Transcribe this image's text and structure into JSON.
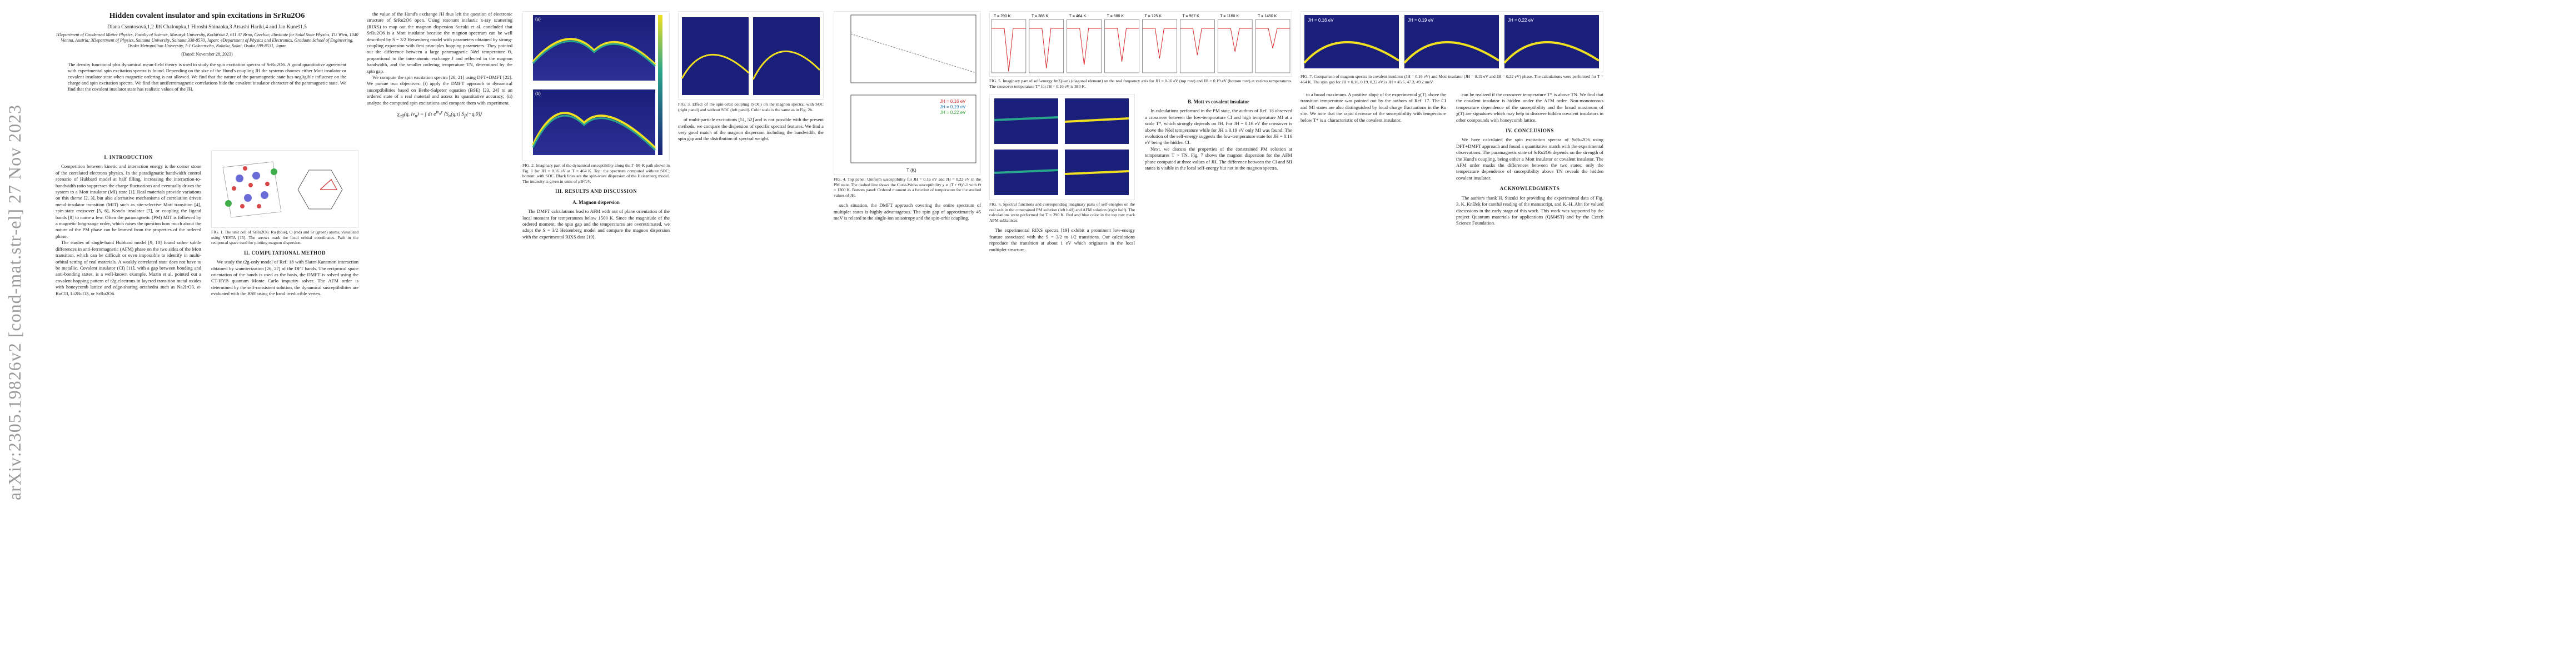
{
  "sidebar": {
    "arxiv_id": "arXiv:2305.19826v2 [cond-mat.str-el] 27 Nov 2023"
  },
  "paper": {
    "title": "Hidden covalent insulator and spin excitations in SrRu2O6",
    "authors": "Diana Csontosová,1,2 Jiří Chaloupka,1 Hiroshi Shinaoka,3 Atsushi Hariki,4 and Jan Kuneš1,5",
    "affiliations": "1Department of Condensed Matter Physics, Faculty of Science, Masaryk University, Kotlářská 2, 611 37 Brno, Czechia; 2Institute for Solid State Physics, TU Wien, 1040 Vienna, Austria; 3Department of Physics, Saitama University, Saitama 338-8570, Japan; 4Department of Physics and Electronics, Graduate School of Engineering, Osaka Metropolitan University, 1-1 Gakuen-cho, Nakaku, Sakai, Osaka 599-8531, Japan",
    "dated": "(Dated: November 28, 2023)",
    "abstract": "The density functional plus dynamical mean-field theory is used to study the spin excitation spectra of SrRu2O6. A good quantitative agreement with experimental spin excitation spectra is found. Depending on the size of the Hund's coupling JH the systems chooses either Mott insulator or covalent insulator state when magnetic ordering is not allowed. We find that the nature of the paramagnetic state has negligible influence on the charge and spin excitation spectra. We find that antiferromagnetic correlations hide the covalent insulator character of the paramagnetic state. We find that the covalent insulator state has realistic values of the JH.",
    "sec1": "I. INTRODUCTION",
    "sec2": "II. COMPUTATIONAL METHOD",
    "sec3": "III. RESULTS AND DISCUSSION",
    "sub_a": "A. Magnon dispersion",
    "sub_b": "B. Mott vs covalent insulator",
    "sec4": "IV. CONCLUSIONS",
    "ack": "ACKNOWLEDGMENTS"
  },
  "columns": {
    "c1_intro": "Competition between kinetic and interaction energy is the corner stone of the correlated electrons physics. In the paradigmatic bandwidth control scenario of Hubbard model at half filling, increasing the interaction-to-bandwidth ratio suppresses the charge fluctuations and eventually drives the system to a Mott insulator (MI) state [1]. Real materials provide variations on this theme [2, 3], but also alternative mechanisms of correlation driven metal-insulator transition (MIT) such as site-selective Mott transition [4], spin-state crossover [5, 6], Kondo insulator [7], or coupling the ligand bands [8] to name a few. Often the paramagnetic (PM) MIT is followed by a magnetic long-range order, which raises the question how much about the nature of the PM phase can be learned from the properties of the ordered phase.",
    "c1_intro2": "The studies of single-band Hubbard model [9, 10] found rather subtle differences in anti-ferromagnetic (AFM) phase on the two sides of the Mott transition, which can be difficult or even impossible to identify in multi-orbital setting of real materials. A weakly correlated state does not have to be metallic. Covalent insulator (CI) [11], with a gap between bonding and anti-bonding states, is a well-known example. Mazin et al. pointed out a covalent hopping pattern of t2g electrons in layered transition metal oxides with honeycomb lattice and edge-sharing octahedra such as Na2IrO3, α-RuCl3, Li2RuO3, or SrRu2O6.",
    "c2_a": "the value of the Hund's exchange JH thus left the question of electronic structure of SrRu2O6 open. Using resonant inelastic x-ray scattering (RIXS) to map out the magnon dispersion Suzuki et al. concluded that SrRu2O6 is a Mott insulator because the magnon spectrum can be well described by S = 3/2 Heisenberg model with parameters obtained by strong-coupling expansion with first principles hopping parameters. They pointed out the difference between a large paramagnetic Néel temperature Θ, proportional to the inter-atomic exchange J and reflected in the magnon bandwidth, and the smaller ordering temperature TN, determined by the spin gap.",
    "c2_b": "We compute the spin excitation spectra [20, 21] using DFT+DMFT [22]. We pursue two objectives: (i) apply the DMFT approach to dynamical susceptibilities based on Bethe-Salpeter equation (BSE) [23, 24] to an ordered state of a real material and assess its quantitative accuracy; (ii) analyze the computed spin excitations and compare them with experiment.",
    "c2_method": "We study the t2g-only model of Ref. 18 with Slater-Kanamori interaction obtained by wannierization [26, 27] of the DFT bands. The reciprocal space orientation of the bands is used as the basis, the DMFT is solved using the CT-HYB quantum Monte Carlo impurity solver. The AFM order is determined by the self-consistent solution, the dynamical susceptibilities are evaluated with the BSE using the local irreducible vertex.",
    "c3_a": "The DMFT calculations lead to AFM with out of plane orientation of the local moment for temperatures below 1500 K. Since the magnitude of the ordered moment, the spin gap and the temperatures are overestimated, we adopt the S = 3/2 Heisenberg model and compare the magnon dispersion with the experimental RIXS data [19].",
    "c3_b": "of multi-particle excitations [51, 52] and is not possible with the present methods, we compare the dispersion of specific spectral features. We find a very good match of the magnon dispersion including the bandwidth, the spin gap and the distribution of spectral weight.",
    "c4_a": "such situation, the DMFT approach covering the entire spectrum of multiplet states is highly advantageous. The spin gap of approximately 45 meV is related to the single-ion anisotropy and the spin-orbit coupling.",
    "c4_b": "In calculations performed in the PM state, the authors of Ref. 18 observed a crossover between the low-temperature CI and high temperature MI at a scale T*, which strongly depends on JH. For JH = 0.16 eV the crossover is above the Néel temperature while for JH ≥ 0.19 eV only MI was found. The evolution of the self-energy suggests the low-temperature state for JH = 0.16 eV being the hidden CI.",
    "c5_a": "The experimental RIXS spectra [19] exhibit a prominent low-energy feature associated with the S = 3/2 to 1/2 transitions. Our calculations reproduce the transition at about 1 eV which originates in the local multiplet structure.",
    "c5_b": "Next, we discuss the properties of the constrained PM solution at temperatures T > TN. Fig. 7 shows the magnon dispersion for the AFM phase computed at three values of JH. The difference between the CI and MI states is visible in the local self-energy but not in the magnon spectra.",
    "c6_a": "to a broad maximum. A positive slope of the experimental χ(T) above the transition temperature was pointed out by the authors of Ref. 17. The CI and MI states are also distinguished by local charge fluctuations in the Ru site. We note that the rapid decrease of the susceptibility with temperature below T* is a characteristic of the covalent insulator.",
    "c6_b": "We have calculated the spin excitation spectra of SrRu2O6 using DFT+DMFT approach and found a quantitative match with the experimental observations. The paramagnetic state of SrRu2O6 depends on the strength of the Hund's coupling, being either a Mott insulator or covalent insulator. The AFM order masks the differences between the two states; only the temperature dependence of susceptibility above TN reveals the hidden covalent insulator.",
    "c6_ack": "The authors thank H. Suzuki for providing the experimental data of Fig. 3, K. Knížek for careful reading of the manuscript, and K.-H. Ahn for valued discussions in the early stage of this work. This work was supported by the project Quantum materials for applications (QM4ST) and by the Czech Science Foundation.",
    "c7": "can be realized if the crossover temperature T* is above TN. We find that the covalent insulator is hidden under the AFM order. Non-monotonous temperature dependence of the susceptibility and the broad maximum of χ(T) are signatures which may help to discover hidden covalent insulators in other compounds with honeycomb lattice."
  },
  "figures": {
    "fig1_caption": "FIG. 1. The unit cell of SrRu2O6: Ru (blue), O (red) and Sr (green) atoms, visualized using VESTA [15]. The arrows mark the local orbital coordinates. Path in the reciprocal space used for plotting magnon dispersion.",
    "fig2_caption": "FIG. 2. Imaginary part of the dynamical susceptibility along the Γ–M–K path shown in Fig. 1 for JH = 0.16 eV at T = 464 K. Top: the spectrum computed without SOC; bottom: with SOC. Black lines are the spin-wave dispersion of the Heisenberg model. The intensity is given in units of μB²/eV.",
    "fig3_caption": "FIG. 3. Effect of the spin-orbit coupling (SOC) on the magnon spectra: with SOC (right panel) and without SOC (left panel). Color scale is the same as in Fig. 2b.",
    "fig3_title": "Spectral function",
    "fig4_caption": "FIG. 4. Top panel: Uniform susceptibility for JH = 0.16 eV and JH = 0.22 eV in the PM state. The dashed line shows the Curie-Weiss susceptibility χ ∝ (T + Θ)^-1 with Θ = 1300 K. Bottom panel: Ordered moment as a function of temperature for the studied values of JH.",
    "fig5_caption": "FIG. 5. Imaginary part of self-energy ImΣ(iωn) (diagonal element) on the real frequency axis for JH = 0.16 eV (top row) and JH = 0.19 eV (bottom row) at various temperatures. The crossover temperature T* for JH = 0.16 eV is 380 K.",
    "fig6_caption": "FIG. 6. Spectral functions and corresponding imaginary parts of self-energies on the real axis in the constrained PM solution (left half) and AFM solution (right half). The calculations were performed for T = 290 K. Red and blue color in the top row mark AFM sublattices.",
    "fig7_caption": "FIG. 7. Comparison of magnon spectra in covalent insulator (JH = 0.16 eV) and Mott insulator (JH = 0.19 eV and JH = 0.22 eV) phase. The calculations were performed for T = 464 K. The spin gap for JH = 0.16, 0.19, 0.22 eV is JH = 45.5, 47.3, 49.2 meV.",
    "fig7_titles": [
      "JH = 0.16 eV",
      "JH = 0.19 eV",
      "JH = 0.22 eV"
    ],
    "fig5_temps": [
      "T = 290 K",
      "T = 386 K",
      "T = 464 K",
      "T = 580 K",
      "T = 725 K",
      "T = 967 K",
      "T = 1160 K",
      "T = 1450 K"
    ],
    "legend_JH": [
      "JH = 0.16 eV",
      "JH = 0.19 eV",
      "JH = 0.22 eV"
    ],
    "panel_a": "(a)",
    "panel_b": "(b)",
    "fig2_ylabel": "ω (eV)",
    "fig2_colorbar": [
      "14",
      "12",
      "10",
      "8",
      "6",
      "4",
      "2",
      "0"
    ],
    "fig4_xlabel": "T (K)",
    "fig4_ylabel_top": "χ (10⁻³ emu/mol)",
    "fig4_ylabel_bottom": "m (μB)",
    "fig4_xticks": [
      "0",
      "200",
      "400",
      "600",
      "800",
      "1000",
      "1200",
      "1400"
    ],
    "path_labels": [
      "Γ",
      "M",
      "K",
      "Γ"
    ]
  },
  "colors": {
    "hot": "#f0e020",
    "mid": "#2aa68a",
    "cold": "#1a1f7a",
    "red": "#d62728",
    "blue": "#1f77b4",
    "green": "#2ca02c"
  }
}
